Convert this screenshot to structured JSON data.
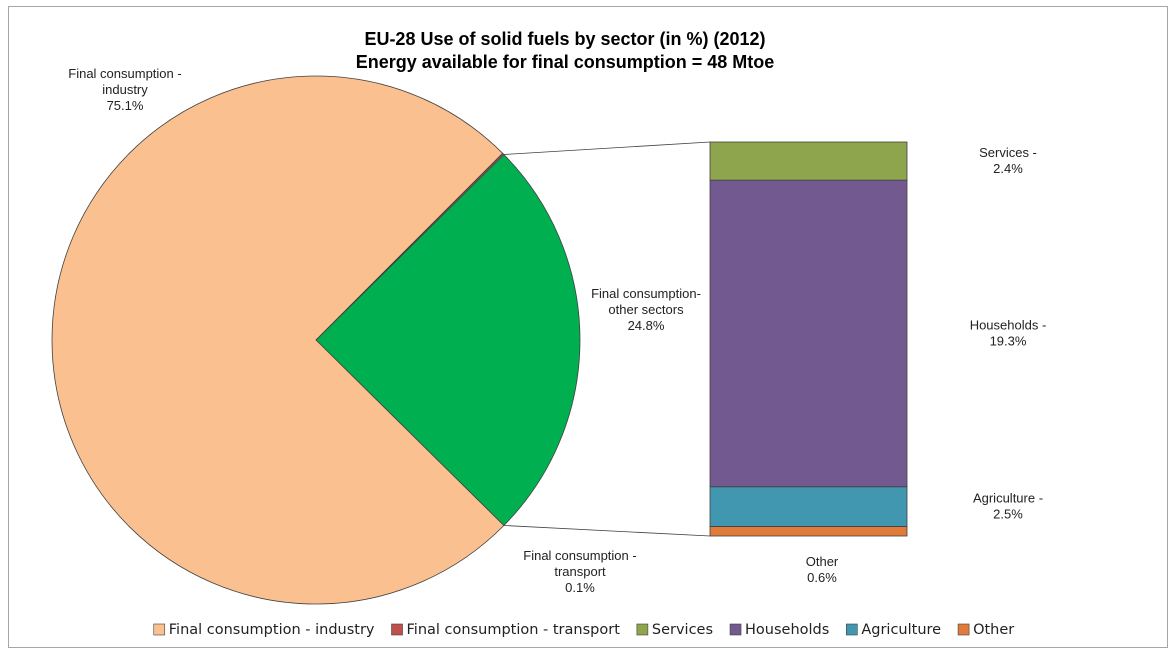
{
  "chart_data": {
    "type": "pie",
    "title": "EU-28 Use of solid fuels by sector (in %) (2012)",
    "subtitle": "Energy available for final consumption =  48 Mtoe",
    "pie": {
      "slices": [
        {
          "name": "Final consumption - industry",
          "value": 75.1,
          "color": "#FAC090",
          "label": [
            "Final consumption -",
            "industry",
            "75.1%"
          ]
        },
        {
          "name": "Final consumption - transport",
          "value": 0.1,
          "color": "#C0504D",
          "label": [
            "Final consumption -",
            "transport",
            "0.1%"
          ]
        },
        {
          "name": "Final consumption - other sectors",
          "value": 24.8,
          "color": "#00B050",
          "label": [
            "Final consumption-",
            "other sectors",
            "24.8%"
          ]
        }
      ]
    },
    "bar_of_pie": {
      "segments": [
        {
          "name": "Other",
          "value": 0.6,
          "color": "#E07B39",
          "label": [
            "Other",
            "0.6%"
          ]
        },
        {
          "name": "Agriculture",
          "value": 2.5,
          "color": "#4197AF",
          "label": [
            "Agriculture -",
            "2.5%"
          ]
        },
        {
          "name": "Households",
          "value": 19.3,
          "color": "#72598F",
          "label": [
            "Households  -",
            "19.3%"
          ]
        },
        {
          "name": "Services",
          "value": 2.4,
          "color": "#8EA54E",
          "label": [
            "Services -",
            "2.4%"
          ]
        }
      ]
    },
    "legend": {
      "position": "bottom",
      "entries": [
        {
          "name": "Final consumption - industry",
          "color": "#FAC090"
        },
        {
          "name": "Final consumption - transport",
          "color": "#C0504D"
        },
        {
          "name": "Services",
          "color": "#8EA54E"
        },
        {
          "name": "Households",
          "color": "#72598F"
        },
        {
          "name": "Agriculture",
          "color": "#4197AF"
        },
        {
          "name": "Other",
          "color": "#E07B39"
        }
      ]
    }
  }
}
